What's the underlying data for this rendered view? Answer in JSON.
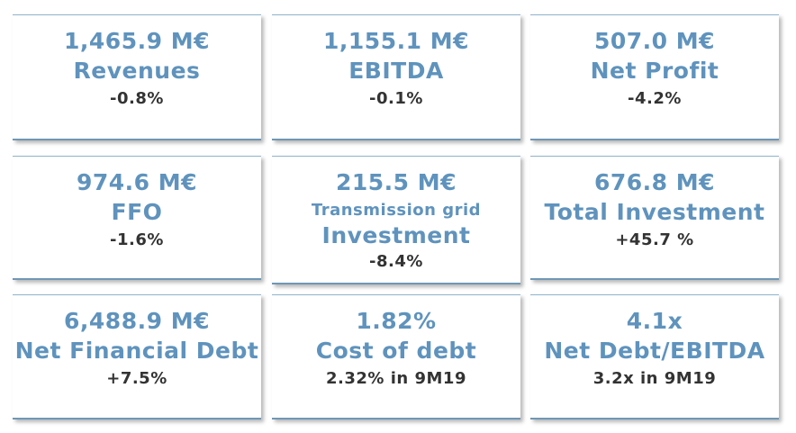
{
  "cards": [
    {
      "value": "1,465.9 M€",
      "label": "Revenues",
      "change": "-0.8%"
    },
    {
      "value": "1,155.1 M€",
      "label": "EBITDA",
      "change": "-0.1%"
    },
    {
      "value": "507.0 M€",
      "label": "Net Profit",
      "change": "-4.2%"
    },
    {
      "value": "974.6 M€",
      "label": "FFO",
      "change": "-1.6%"
    },
    {
      "value": "215.5 M€",
      "sublabel": "Transmission grid",
      "label": "Investment",
      "change": "-8.4%"
    },
    {
      "value": "676.8 M€",
      "label": "Total Investment",
      "change": "+45.7 %"
    },
    {
      "value": "6,488.9 M€",
      "label": "Net Financial Debt",
      "change": "+7.5%"
    },
    {
      "value": "1.82%",
      "label": "Cost of debt",
      "change": "2.32% in 9M19"
    },
    {
      "value": "4.1x",
      "label": "Net Debt/EBITDA",
      "change": "3.2x in 9M19"
    }
  ]
}
